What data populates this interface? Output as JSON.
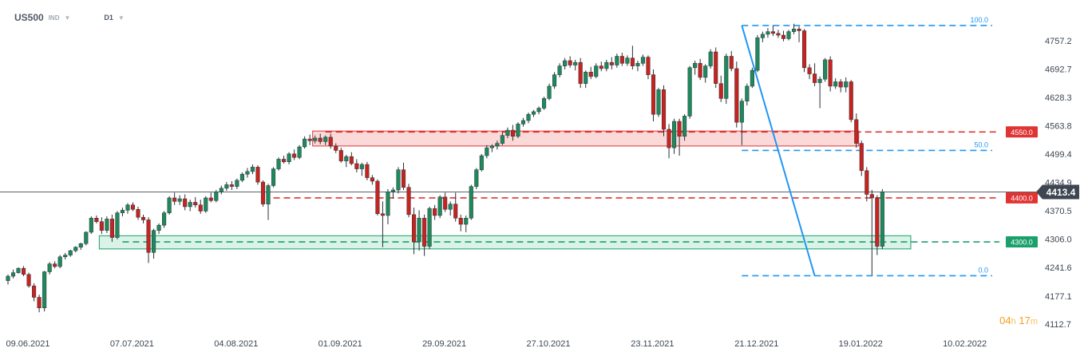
{
  "header": {
    "symbol": "US500",
    "instrument_type": "IND",
    "timeframe": "D1"
  },
  "countdown": {
    "hours": "04",
    "hours_unit": "h",
    "minutes": "17",
    "minutes_unit": "m"
  },
  "colors": {
    "up": "#1e8a5c",
    "down": "#c8231e",
    "resistance": "#e03434",
    "support": "#1aa06a",
    "fib": "#2196f3",
    "price": "#3d4651"
  },
  "chart_data": {
    "type": "candlestick",
    "y_ticks": [
      "4757.2",
      "4692.7",
      "4628.3",
      "4563.8",
      "4499.4",
      "4434.9",
      "4370.5",
      "4306.0",
      "4241.6",
      "4177.1",
      "4112.7"
    ],
    "ylim": [
      4095,
      4810
    ],
    "x_tick_labels": [
      "09.06.2021",
      "07.07.2021",
      "04.08.2021",
      "01.09.2021",
      "29.09.2021",
      "27.10.2021",
      "23.11.2021",
      "21.12.2021",
      "19.01.2022",
      "10.02.2022"
    ],
    "x_tick_indices": [
      0,
      20,
      40,
      60,
      80,
      100,
      120,
      140,
      160,
      180
    ],
    "current_price": {
      "value": 4413.4,
      "label": "4413.4"
    },
    "levels": [
      {
        "name": "resistance-4550",
        "value": 4550,
        "label": "4550.0",
        "color": "#e03434",
        "zone": [
          4518,
          4552
        ],
        "zone_start": 59,
        "zone_end": 163,
        "line_start": 61
      },
      {
        "name": "resistance-4400",
        "value": 4400,
        "label": "4400.0",
        "color": "#e03434",
        "line_start": 51
      },
      {
        "name": "support-4300",
        "value": 4300,
        "label": "4300.0",
        "color": "#1aa06a",
        "zone": [
          4284,
          4314
        ],
        "zone_start": 18,
        "zone_end": 173,
        "line_start": 22
      }
    ],
    "fibonacci": {
      "levels": [
        {
          "label": "100.0",
          "value": 4792
        },
        {
          "label": "50.0",
          "value": 4508
        },
        {
          "label": "0.0",
          "value": 4223
        }
      ],
      "start_index": 141,
      "end_index": 177
    },
    "trend_line": {
      "from_index": 141,
      "from_value": 4792,
      "to_index": 155,
      "to_value": 4223
    },
    "candles": [
      [
        4212,
        4226,
        4203,
        4222
      ],
      [
        4222,
        4237,
        4217,
        4230
      ],
      [
        4230,
        4242,
        4228,
        4240
      ],
      [
        4240,
        4245,
        4222,
        4226
      ],
      [
        4226,
        4230,
        4196,
        4200
      ],
      [
        4200,
        4206,
        4165,
        4174
      ],
      [
        4174,
        4180,
        4140,
        4150
      ],
      [
        4150,
        4234,
        4142,
        4232
      ],
      [
        4232,
        4254,
        4226,
        4250
      ],
      [
        4250,
        4256,
        4240,
        4244
      ],
      [
        4244,
        4270,
        4240,
        4266
      ],
      [
        4266,
        4275,
        4260,
        4270
      ],
      [
        4270,
        4282,
        4266,
        4280
      ],
      [
        4280,
        4290,
        4276,
        4288
      ],
      [
        4288,
        4298,
        4282,
        4296
      ],
      [
        4296,
        4324,
        4292,
        4322
      ],
      [
        4322,
        4358,
        4318,
        4354
      ],
      [
        4354,
        4360,
        4342,
        4346
      ],
      [
        4346,
        4356,
        4318,
        4326
      ],
      [
        4326,
        4358,
        4320,
        4352
      ],
      [
        4352,
        4362,
        4300,
        4310
      ],
      [
        4310,
        4370,
        4306,
        4366
      ],
      [
        4366,
        4378,
        4358,
        4372
      ],
      [
        4372,
        4388,
        4364,
        4384
      ],
      [
        4384,
        4390,
        4370,
        4374
      ],
      [
        4374,
        4380,
        4350,
        4356
      ],
      [
        4356,
        4362,
        4342,
        4350
      ],
      [
        4350,
        4356,
        4252,
        4276
      ],
      [
        4276,
        4330,
        4262,
        4326
      ],
      [
        4326,
        4342,
        4318,
        4338
      ],
      [
        4338,
        4370,
        4332,
        4366
      ],
      [
        4366,
        4404,
        4362,
        4400
      ],
      [
        4400,
        4412,
        4384,
        4392
      ],
      [
        4392,
        4406,
        4384,
        4398
      ],
      [
        4398,
        4408,
        4372,
        4380
      ],
      [
        4380,
        4396,
        4370,
        4390
      ],
      [
        4390,
        4402,
        4378,
        4384
      ],
      [
        4384,
        4396,
        4364,
        4370
      ],
      [
        4370,
        4404,
        4366,
        4400
      ],
      [
        4400,
        4412,
        4390,
        4394
      ],
      [
        4394,
        4418,
        4390,
        4414
      ],
      [
        4414,
        4428,
        4408,
        4422
      ],
      [
        4422,
        4436,
        4416,
        4430
      ],
      [
        4430,
        4438,
        4418,
        4426
      ],
      [
        4426,
        4444,
        4420,
        4440
      ],
      [
        4440,
        4458,
        4436,
        4454
      ],
      [
        4454,
        4468,
        4446,
        4460
      ],
      [
        4460,
        4476,
        4454,
        4470
      ],
      [
        4470,
        4474,
        4430,
        4436
      ],
      [
        4436,
        4440,
        4380,
        4386
      ],
      [
        4386,
        4432,
        4350,
        4428
      ],
      [
        4428,
        4470,
        4424,
        4466
      ],
      [
        4466,
        4492,
        4462,
        4488
      ],
      [
        4488,
        4496,
        4478,
        4482
      ],
      [
        4482,
        4504,
        4476,
        4500
      ],
      [
        4500,
        4510,
        4486,
        4492
      ],
      [
        4492,
        4520,
        4488,
        4516
      ],
      [
        4516,
        4540,
        4512,
        4534
      ],
      [
        4534,
        4544,
        4520,
        4530
      ],
      [
        4530,
        4542,
        4524,
        4536
      ],
      [
        4536,
        4546,
        4522,
        4528
      ],
      [
        4528,
        4542,
        4520,
        4538
      ],
      [
        4538,
        4546,
        4512,
        4518
      ],
      [
        4518,
        4524,
        4502,
        4508
      ],
      [
        4508,
        4514,
        4480,
        4484
      ],
      [
        4484,
        4498,
        4470,
        4494
      ],
      [
        4494,
        4504,
        4474,
        4478
      ],
      [
        4478,
        4488,
        4458,
        4466
      ],
      [
        4466,
        4480,
        4450,
        4476
      ],
      [
        4476,
        4482,
        4440,
        4446
      ],
      [
        4446,
        4452,
        4430,
        4438
      ],
      [
        4438,
        4442,
        4360,
        4364
      ],
      [
        4364,
        4392,
        4288,
        4360
      ],
      [
        4360,
        4420,
        4340,
        4414
      ],
      [
        4414,
        4424,
        4398,
        4418
      ],
      [
        4418,
        4470,
        4410,
        4464
      ],
      [
        4464,
        4480,
        4418,
        4424
      ],
      [
        4424,
        4432,
        4356,
        4362
      ],
      [
        4362,
        4378,
        4272,
        4300
      ],
      [
        4300,
        4372,
        4280,
        4354
      ],
      [
        4354,
        4362,
        4268,
        4290
      ],
      [
        4290,
        4380,
        4284,
        4376
      ],
      [
        4376,
        4384,
        4350,
        4360
      ],
      [
        4360,
        4406,
        4354,
        4402
      ],
      [
        4402,
        4412,
        4368,
        4374
      ],
      [
        4374,
        4392,
        4360,
        4386
      ],
      [
        4386,
        4412,
        4346,
        4354
      ],
      [
        4354,
        4362,
        4324,
        4340
      ],
      [
        4340,
        4360,
        4322,
        4354
      ],
      [
        4354,
        4430,
        4350,
        4426
      ],
      [
        4426,
        4468,
        4420,
        4464
      ],
      [
        4464,
        4500,
        4460,
        4496
      ],
      [
        4496,
        4520,
        4490,
        4514
      ],
      [
        4514,
        4522,
        4504,
        4518
      ],
      [
        4518,
        4530,
        4510,
        4524
      ],
      [
        4524,
        4550,
        4520,
        4542
      ],
      [
        4542,
        4560,
        4536,
        4554
      ],
      [
        4554,
        4566,
        4530,
        4540
      ],
      [
        4540,
        4572,
        4536,
        4568
      ],
      [
        4568,
        4582,
        4562,
        4576
      ],
      [
        4576,
        4594,
        4570,
        4590
      ],
      [
        4590,
        4600,
        4584,
        4596
      ],
      [
        4596,
        4608,
        4590,
        4604
      ],
      [
        4604,
        4630,
        4600,
        4626
      ],
      [
        4626,
        4660,
        4622,
        4654
      ],
      [
        4654,
        4686,
        4648,
        4680
      ],
      [
        4680,
        4706,
        4674,
        4700
      ],
      [
        4700,
        4718,
        4692,
        4712
      ],
      [
        4712,
        4722,
        4696,
        4702
      ],
      [
        4702,
        4714,
        4690,
        4708
      ],
      [
        4708,
        4718,
        4650,
        4660
      ],
      [
        4660,
        4690,
        4650,
        4686
      ],
      [
        4686,
        4698,
        4670,
        4676
      ],
      [
        4676,
        4706,
        4672,
        4700
      ],
      [
        4700,
        4710,
        4688,
        4694
      ],
      [
        4694,
        4714,
        4688,
        4708
      ],
      [
        4708,
        4720,
        4692,
        4702
      ],
      [
        4702,
        4728,
        4696,
        4722
      ],
      [
        4722,
        4730,
        4700,
        4706
      ],
      [
        4706,
        4724,
        4700,
        4718
      ],
      [
        4718,
        4746,
        4692,
        4700
      ],
      [
        4700,
        4712,
        4688,
        4706
      ],
      [
        4706,
        4726,
        4700,
        4720
      ],
      [
        4720,
        4724,
        4670,
        4680
      ],
      [
        4680,
        4692,
        4574,
        4590
      ],
      [
        4590,
        4650,
        4584,
        4646
      ],
      [
        4646,
        4656,
        4540,
        4556
      ],
      [
        4556,
        4568,
        4490,
        4514
      ],
      [
        4514,
        4580,
        4500,
        4574
      ],
      [
        4574,
        4580,
        4496,
        4540
      ],
      [
        4540,
        4590,
        4530,
        4586
      ],
      [
        4586,
        4700,
        4580,
        4696
      ],
      [
        4696,
        4712,
        4680,
        4706
      ],
      [
        4706,
        4716,
        4668,
        4674
      ],
      [
        4674,
        4704,
        4662,
        4700
      ],
      [
        4700,
        4738,
        4694,
        4732
      ],
      [
        4732,
        4742,
        4650,
        4660
      ],
      [
        4660,
        4678,
        4618,
        4626
      ],
      [
        4626,
        4728,
        4614,
        4722
      ],
      [
        4722,
        4734,
        4688,
        4694
      ],
      [
        4694,
        4710,
        4560,
        4572
      ],
      [
        4572,
        4626,
        4520,
        4620
      ],
      [
        4620,
        4660,
        4610,
        4654
      ],
      [
        4654,
        4696,
        4650,
        4690
      ],
      [
        4690,
        4770,
        4686,
        4764
      ],
      [
        4764,
        4778,
        4754,
        4772
      ],
      [
        4772,
        4786,
        4764,
        4778
      ],
      [
        4778,
        4792,
        4768,
        4774
      ],
      [
        4774,
        4782,
        4764,
        4770
      ],
      [
        4770,
        4780,
        4756,
        4762
      ],
      [
        4762,
        4782,
        4758,
        4778
      ],
      [
        4778,
        4796,
        4772,
        4784
      ],
      [
        4784,
        4790,
        4754,
        4780
      ],
      [
        4780,
        4784,
        4686,
        4696
      ],
      [
        4696,
        4704,
        4670,
        4682
      ],
      [
        4682,
        4706,
        4654,
        4662
      ],
      [
        4662,
        4676,
        4604,
        4670
      ],
      [
        4670,
        4718,
        4664,
        4714
      ],
      [
        4714,
        4722,
        4642,
        4654
      ],
      [
        4654,
        4672,
        4648,
        4664
      ],
      [
        4664,
        4670,
        4640,
        4652
      ],
      [
        4652,
        4674,
        4640,
        4664
      ],
      [
        4664,
        4668,
        4572,
        4578
      ],
      [
        4578,
        4592,
        4514,
        4524
      ],
      [
        4524,
        4530,
        4450,
        4462
      ],
      [
        4462,
        4470,
        4392,
        4408
      ],
      [
        4408,
        4418,
        4224,
        4400
      ],
      [
        4400,
        4406,
        4270,
        4290
      ],
      [
        4290,
        4420,
        4284,
        4414
      ]
    ]
  }
}
